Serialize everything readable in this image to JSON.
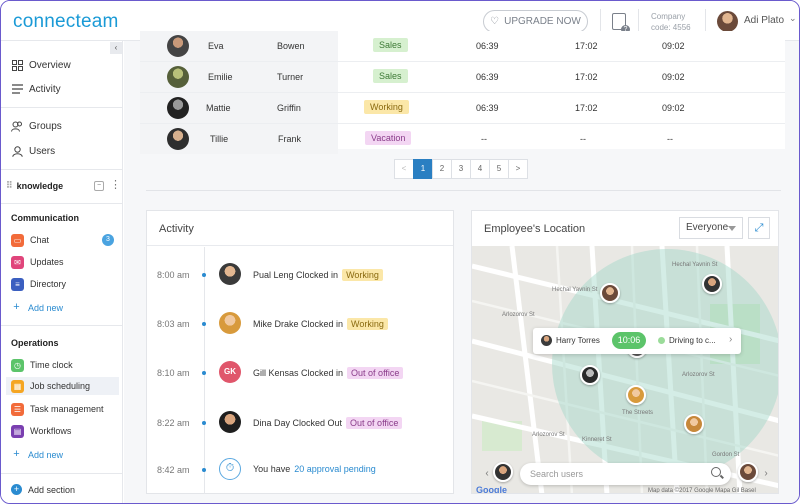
{
  "brand": {
    "logo": "connecteam"
  },
  "topbar": {
    "upgrade_label": "UPGRADE NOW",
    "company_label": "Company",
    "company_code": "code: 4556",
    "user_name": "Adi Plato"
  },
  "sidebar": {
    "main_items": [
      {
        "label": "Overview",
        "icon": "grid-icon"
      },
      {
        "label": "Activity",
        "icon": "list-icon"
      },
      {
        "label": "Groups",
        "icon": "groups-icon"
      },
      {
        "label": "Users",
        "icon": "user-icon"
      }
    ],
    "knowledge_label": "knowledge",
    "communication": {
      "title": "Communication",
      "items": [
        {
          "label": "Chat",
          "icon": "chat-icon",
          "color": "#f26b3a",
          "badge": "3"
        },
        {
          "label": "Updates",
          "icon": "mail-icon",
          "color": "#e0457b"
        },
        {
          "label": "Directory",
          "icon": "directory-icon",
          "color": "#3b5fc0"
        }
      ],
      "add_new": "Add new"
    },
    "operations": {
      "title": "Operations",
      "items": [
        {
          "label": "Time clock",
          "icon": "clock-icon",
          "color": "#5cc46a"
        },
        {
          "label": "Job scheduling",
          "icon": "calendar-icon",
          "color": "#f5a623"
        },
        {
          "label": "Task management",
          "icon": "task-icon",
          "color": "#f26b3a"
        },
        {
          "label": "Workflows",
          "icon": "workflow-icon",
          "color": "#7a3fb0"
        }
      ],
      "add_new": "Add new"
    },
    "add_section": "Add section"
  },
  "table": {
    "rows": [
      {
        "first": "Eva",
        "last": "Bowen",
        "status": "Sales",
        "status_type": "green",
        "col1": "06:39",
        "col2": "17:02",
        "col3": "09:02"
      },
      {
        "first": "Emilie",
        "last": "Turner",
        "status": "Sales",
        "status_type": "green",
        "col1": "06:39",
        "col2": "17:02",
        "col3": "09:02"
      },
      {
        "first": "Mattie",
        "last": "Griffin",
        "status": "Working",
        "status_type": "yellow",
        "col1": "06:39",
        "col2": "17:02",
        "col3": "09:02"
      },
      {
        "first": "Tillie",
        "last": "Frank",
        "status": "Vacation",
        "status_type": "purple",
        "col1": "--",
        "col2": "--",
        "col3": "--"
      }
    ],
    "pagination": {
      "prev": "<",
      "pages": [
        "1",
        "2",
        "3",
        "4",
        "5"
      ],
      "next": ">",
      "current": "1"
    }
  },
  "activity": {
    "title": "Activity",
    "items": [
      {
        "time": "8:00 am",
        "text": "Pual Leng Clocked in",
        "tag": "Working",
        "tag_type": "yellow"
      },
      {
        "time": "8:03 am",
        "text": "Mike Drake Clocked in",
        "tag": "Working",
        "tag_type": "yellow"
      },
      {
        "time": "8:10 am",
        "text": "Gill Kensas Clocked in",
        "tag": "Out of office",
        "tag_type": "purple",
        "initials": "GK"
      },
      {
        "time": "8:22 am",
        "text": "Dina Day Clocked Out",
        "tag": "Out of office",
        "tag_type": "purple"
      },
      {
        "time": "8:42 am",
        "text_prefix": "You have",
        "link": "20 approval pending"
      }
    ]
  },
  "location": {
    "title": "Employee's Location",
    "filter": "Everyone",
    "popup": {
      "name": "Harry Torres",
      "time": "10:06",
      "status": "Driving to c..."
    },
    "search_placeholder": "Search users",
    "map_labels": [
      "Hechal Yavnin St",
      "Arlozorov St",
      "The Streets",
      "Gordon St",
      "Kinneret St",
      "Arlozorov St",
      "Hechal Yavnin St",
      "Arlozorov St"
    ],
    "map_credit": "Map data ©2017 Google  Mapa Gil Basel",
    "google": "Google"
  }
}
